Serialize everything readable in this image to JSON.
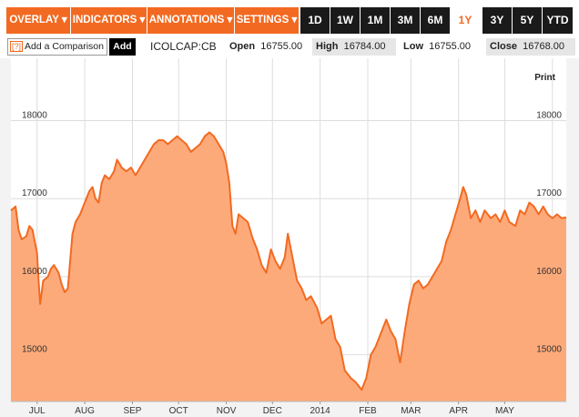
{
  "toolbar": {
    "menus": [
      "OVERLAY ▾",
      "INDICATORS ▾",
      "ANNOTATIONS ▾",
      "SETTINGS ▾"
    ],
    "ranges": [
      "1D",
      "1W",
      "1M",
      "3M",
      "6M",
      "1Y",
      "3Y",
      "5Y",
      "YTD"
    ],
    "active_range": "1Y"
  },
  "info": {
    "compare_icon": "[?]",
    "compare_placeholder": "Add a Comparison",
    "add_label": "Add",
    "ticker": "ICOLCAP:CB",
    "open_label": "Open",
    "open_value": "16755.00",
    "high_label": "High",
    "high_value": "16784.00",
    "low_label": "Low",
    "low_value": "16755.00",
    "close_label": "Close",
    "close_value": "16768.00"
  },
  "print_label": "Print",
  "colors": {
    "accent": "#f26a21",
    "line": "#f26a21",
    "fill": "#fdaa7b",
    "panel": "#f3f3f3"
  },
  "chart_data": {
    "type": "area",
    "title": "",
    "xlabel": "",
    "ylabel": "",
    "ylim": [
      14400,
      18800
    ],
    "yticks": [
      15000,
      16000,
      17000,
      18000
    ],
    "grid": true,
    "month_labels": [
      "JUL",
      "AUG",
      "SEP",
      "OCT",
      "NOV",
      "DEC",
      "2014",
      "FEB",
      "MAR",
      "APR",
      "MAY"
    ],
    "x_range": [
      "2013-06-14",
      "2014-06-10"
    ],
    "series": [
      {
        "points": [
          [
            "2013-06-14",
            16850
          ],
          [
            "2013-06-17",
            16900
          ],
          [
            "2013-06-19",
            16600
          ],
          [
            "2013-06-21",
            16480
          ],
          [
            "2013-06-24",
            16520
          ],
          [
            "2013-06-26",
            16650
          ],
          [
            "2013-06-28",
            16600
          ],
          [
            "2013-07-01",
            16300
          ],
          [
            "2013-07-02",
            15950
          ],
          [
            "2013-07-03",
            15650
          ],
          [
            "2013-07-05",
            15950
          ],
          [
            "2013-07-08",
            16000
          ],
          [
            "2013-07-10",
            16100
          ],
          [
            "2013-07-12",
            16150
          ],
          [
            "2013-07-15",
            16050
          ],
          [
            "2013-07-17",
            15900
          ],
          [
            "2013-07-19",
            15800
          ],
          [
            "2013-07-21",
            15850
          ],
          [
            "2013-07-24",
            16550
          ],
          [
            "2013-07-26",
            16700
          ],
          [
            "2013-07-29",
            16800
          ],
          [
            "2013-07-31",
            16900
          ],
          [
            "2013-08-02",
            17000
          ],
          [
            "2013-08-04",
            17100
          ],
          [
            "2013-08-06",
            17150
          ],
          [
            "2013-08-08",
            17000
          ],
          [
            "2013-08-10",
            16950
          ],
          [
            "2013-08-12",
            17200
          ],
          [
            "2013-08-14",
            17300
          ],
          [
            "2013-08-17",
            17250
          ],
          [
            "2013-08-20",
            17350
          ],
          [
            "2013-08-22",
            17500
          ],
          [
            "2013-08-25",
            17400
          ],
          [
            "2013-08-28",
            17350
          ],
          [
            "2013-08-31",
            17400
          ],
          [
            "2013-09-03",
            17300
          ],
          [
            "2013-09-06",
            17400
          ],
          [
            "2013-09-09",
            17500
          ],
          [
            "2013-09-12",
            17600
          ],
          [
            "2013-09-15",
            17700
          ],
          [
            "2013-09-18",
            17750
          ],
          [
            "2013-09-21",
            17750
          ],
          [
            "2013-09-24",
            17700
          ],
          [
            "2013-09-27",
            17750
          ],
          [
            "2013-09-30",
            17800
          ],
          [
            "2013-10-03",
            17750
          ],
          [
            "2013-10-06",
            17700
          ],
          [
            "2013-10-09",
            17600
          ],
          [
            "2013-10-12",
            17650
          ],
          [
            "2013-10-15",
            17700
          ],
          [
            "2013-10-18",
            17800
          ],
          [
            "2013-10-21",
            17850
          ],
          [
            "2013-10-24",
            17800
          ],
          [
            "2013-10-27",
            17700
          ],
          [
            "2013-10-30",
            17600
          ],
          [
            "2013-11-01",
            17450
          ],
          [
            "2013-11-03",
            17200
          ],
          [
            "2013-11-05",
            16650
          ],
          [
            "2013-11-07",
            16550
          ],
          [
            "2013-11-09",
            16800
          ],
          [
            "2013-11-12",
            16750
          ],
          [
            "2013-11-15",
            16700
          ],
          [
            "2013-11-18",
            16500
          ],
          [
            "2013-11-21",
            16350
          ],
          [
            "2013-11-24",
            16150
          ],
          [
            "2013-11-27",
            16050
          ],
          [
            "2013-11-30",
            16350
          ],
          [
            "2013-12-03",
            16200
          ],
          [
            "2013-12-06",
            16100
          ],
          [
            "2013-12-09",
            16250
          ],
          [
            "2013-12-11",
            16550
          ],
          [
            "2013-12-14",
            16250
          ],
          [
            "2013-12-17",
            15950
          ],
          [
            "2013-12-20",
            15850
          ],
          [
            "2013-12-23",
            15700
          ],
          [
            "2013-12-26",
            15750
          ],
          [
            "2013-12-30",
            15600
          ],
          [
            "2014-01-02",
            15400
          ],
          [
            "2014-01-05",
            15450
          ],
          [
            "2014-01-08",
            15500
          ],
          [
            "2014-01-11",
            15200
          ],
          [
            "2014-01-14",
            15100
          ],
          [
            "2014-01-17",
            14800
          ],
          [
            "2014-01-21",
            14700
          ],
          [
            "2014-01-24",
            14650
          ],
          [
            "2014-01-28",
            14550
          ],
          [
            "2014-01-31",
            14700
          ],
          [
            "2014-02-03",
            15000
          ],
          [
            "2014-02-06",
            15100
          ],
          [
            "2014-02-09",
            15250
          ],
          [
            "2014-02-11",
            15350
          ],
          [
            "2014-02-13",
            15450
          ],
          [
            "2014-02-16",
            15300
          ],
          [
            "2014-02-19",
            15200
          ],
          [
            "2014-02-22",
            14900
          ],
          [
            "2014-02-25",
            15300
          ],
          [
            "2014-02-28",
            15650
          ],
          [
            "2014-03-03",
            15900
          ],
          [
            "2014-03-06",
            15950
          ],
          [
            "2014-03-09",
            15850
          ],
          [
            "2014-03-12",
            15900
          ],
          [
            "2014-03-15",
            16000
          ],
          [
            "2014-03-18",
            16100
          ],
          [
            "2014-03-21",
            16200
          ],
          [
            "2014-03-24",
            16450
          ],
          [
            "2014-03-27",
            16600
          ],
          [
            "2014-03-30",
            16800
          ],
          [
            "2014-04-02",
            17000
          ],
          [
            "2014-04-04",
            17150
          ],
          [
            "2014-04-06",
            17050
          ],
          [
            "2014-04-09",
            16750
          ],
          [
            "2014-04-12",
            16850
          ],
          [
            "2014-04-15",
            16700
          ],
          [
            "2014-04-18",
            16850
          ],
          [
            "2014-04-22",
            16750
          ],
          [
            "2014-04-25",
            16800
          ],
          [
            "2014-04-28",
            16700
          ],
          [
            "2014-05-01",
            16850
          ],
          [
            "2014-05-04",
            16700
          ],
          [
            "2014-05-08",
            16650
          ],
          [
            "2014-05-11",
            16850
          ],
          [
            "2014-05-14",
            16800
          ],
          [
            "2014-05-17",
            16950
          ],
          [
            "2014-05-20",
            16900
          ],
          [
            "2014-05-23",
            16800
          ],
          [
            "2014-05-26",
            16900
          ],
          [
            "2014-05-29",
            16800
          ],
          [
            "2014-06-01",
            16750
          ],
          [
            "2014-06-04",
            16800
          ],
          [
            "2014-06-07",
            16750
          ],
          [
            "2014-06-10",
            16760
          ]
        ]
      }
    ]
  }
}
